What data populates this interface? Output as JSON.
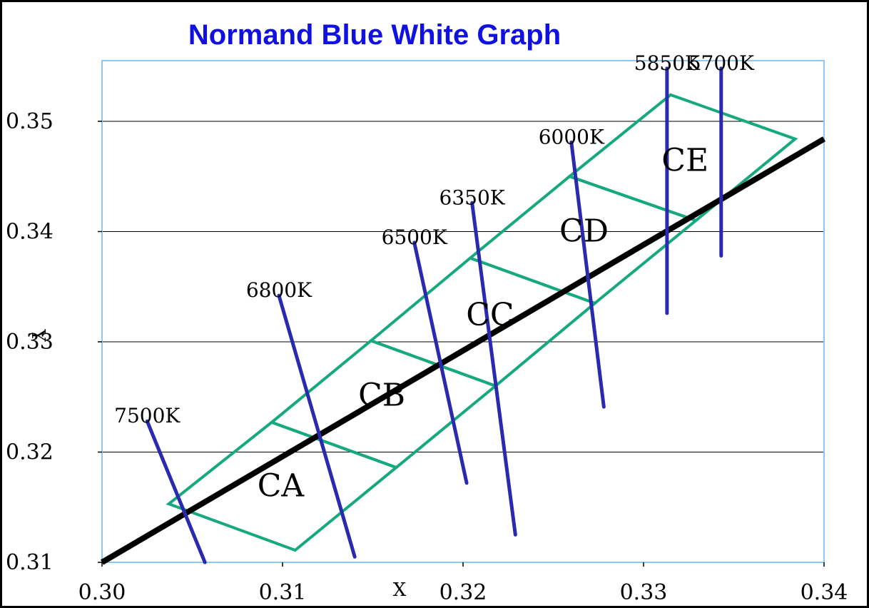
{
  "chart_data": {
    "type": "line",
    "title": "Normand Blue White Graph",
    "xlabel": "X",
    "ylabel": "Y",
    "xlim": [
      0.3,
      0.34
    ],
    "ylim": [
      0.31,
      0.3555
    ],
    "x_ticks": [
      "0.30",
      "0.31",
      "0.32",
      "0.33",
      "0.34"
    ],
    "x_tick_values": [
      0.3,
      0.31,
      0.32,
      0.33,
      0.34
    ],
    "y_ticks": [
      "0.31",
      "0.32",
      "0.33",
      "0.34",
      "0.35"
    ],
    "y_tick_values": [
      0.31,
      0.32,
      0.33,
      0.34,
      0.35
    ],
    "grid": "horizontal",
    "colors": {
      "title": "#1010e0",
      "locus": "#000000",
      "isotherm": "#2a2ab0",
      "bin": "#16a87e",
      "plot_border": "#8ec8ee",
      "grid": "#000000"
    },
    "locus": {
      "name": "",
      "points": [
        [
          0.3,
          0.31
        ],
        [
          0.34,
          0.3484
        ]
      ]
    },
    "isotherms": [
      {
        "label": "7500K",
        "points": [
          [
            0.3025,
            0.3228
          ],
          [
            0.3057,
            0.31
          ]
        ]
      },
      {
        "label": "6800K",
        "points": [
          [
            0.3098,
            0.3342
          ],
          [
            0.314,
            0.3105
          ]
        ]
      },
      {
        "label": "6500K",
        "points": [
          [
            0.3173,
            0.339
          ],
          [
            0.3202,
            0.3172
          ]
        ]
      },
      {
        "label": "6350K",
        "points": [
          [
            0.3205,
            0.3426
          ],
          [
            0.3229,
            0.3125
          ]
        ]
      },
      {
        "label": "6000K",
        "points": [
          [
            0.326,
            0.3481
          ],
          [
            0.3278,
            0.3241
          ]
        ]
      },
      {
        "label": "5850K",
        "points": [
          [
            0.3313,
            0.3548
          ],
          [
            0.3313,
            0.3326
          ]
        ]
      },
      {
        "label": "5700K",
        "points": [
          [
            0.3343,
            0.3548
          ],
          [
            0.3343,
            0.3378
          ]
        ]
      }
    ],
    "bins": [
      {
        "label": "CA",
        "label_pos": [
          0.3099,
          0.316
        ],
        "polygon": [
          [
            0.3037,
            0.3153
          ],
          [
            0.3094,
            0.3227
          ],
          [
            0.3163,
            0.3186
          ],
          [
            0.3107,
            0.3111
          ]
        ]
      },
      {
        "label": "CB",
        "label_pos": [
          0.3155,
          0.3242
        ],
        "polygon": [
          [
            0.3094,
            0.3227
          ],
          [
            0.3149,
            0.3301
          ],
          [
            0.3218,
            0.326
          ],
          [
            0.3163,
            0.3186
          ]
        ]
      },
      {
        "label": "CC",
        "label_pos": [
          0.3215,
          0.3315
        ],
        "polygon": [
          [
            0.3149,
            0.3301
          ],
          [
            0.3204,
            0.3376
          ],
          [
            0.3273,
            0.3335
          ],
          [
            0.3218,
            0.326
          ]
        ]
      },
      {
        "label": "CD",
        "label_pos": [
          0.3267,
          0.3391
        ],
        "polygon": [
          [
            0.3204,
            0.3376
          ],
          [
            0.3259,
            0.345
          ],
          [
            0.3329,
            0.341
          ],
          [
            0.3273,
            0.3335
          ]
        ]
      },
      {
        "label": "CE",
        "label_pos": [
          0.3323,
          0.3455
        ],
        "polygon": [
          [
            0.3259,
            0.345
          ],
          [
            0.3315,
            0.3524
          ],
          [
            0.3384,
            0.3484
          ],
          [
            0.3329,
            0.341
          ]
        ]
      }
    ]
  }
}
